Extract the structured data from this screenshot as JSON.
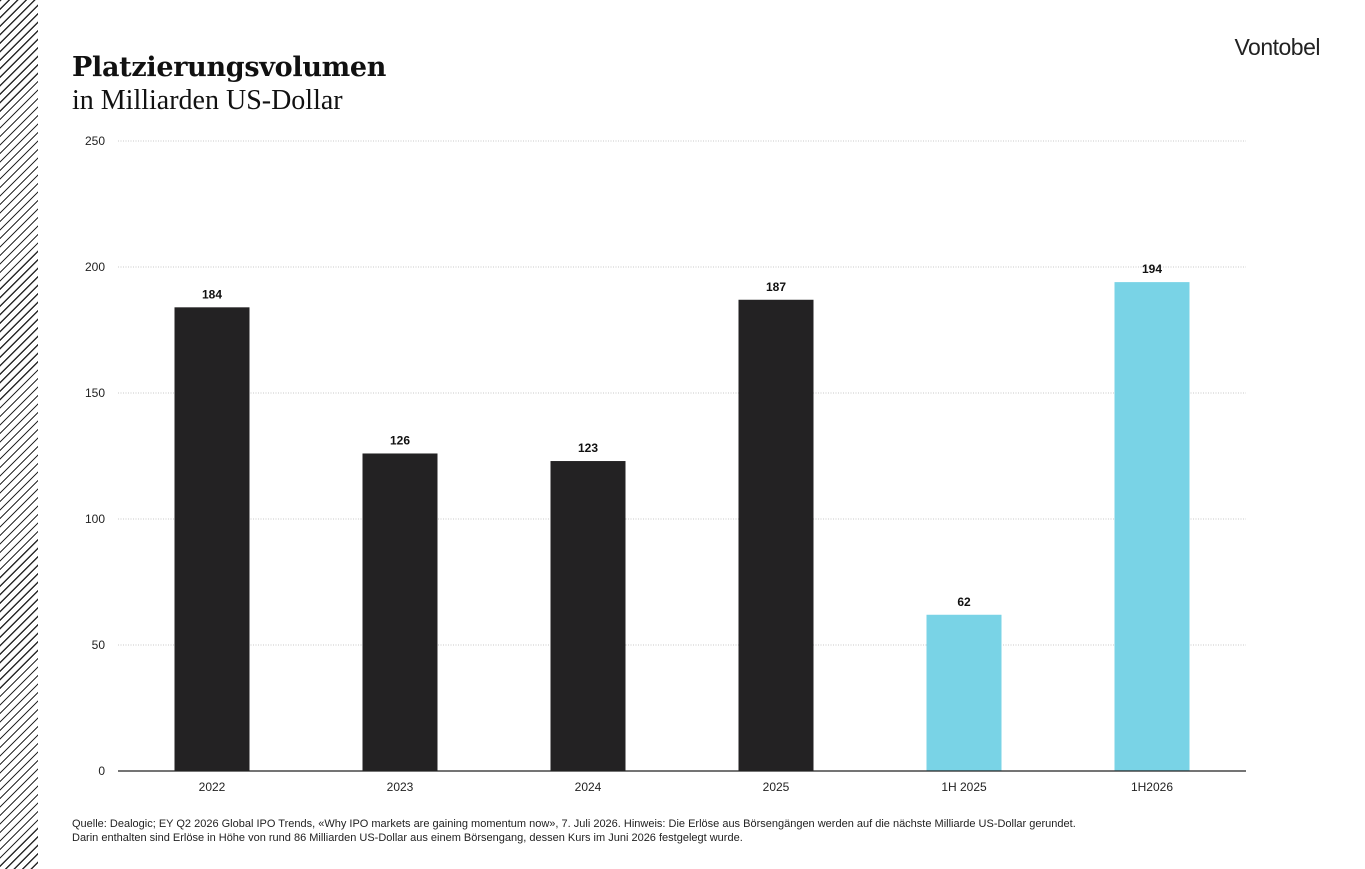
{
  "header": {
    "title": "Platzierungsvolumen",
    "subtitle": "in Milliarden US-Dollar",
    "brand": "Vontobel"
  },
  "footnote": {
    "line1": "Quelle: Dealogic; EY Q2 2026 Global IPO Trends, «Why IPO markets are gaining momentum now», 7. Juli 2026. Hinweis: Die Erlöse aus Börsengängen werden auf die nächste Milliarde US-Dollar gerundet.",
    "line2": "Darin enthalten sind Erlöse in Höhe von rund 86 Milliarden US-Dollar aus einem Börsengang, dessen Kurs im Juni 2026 festgelegt wurde."
  },
  "colors": {
    "annual": "#232223",
    "half_year": "#79d3e6"
  },
  "chart_data": {
    "type": "bar",
    "categories": [
      "2022",
      "2023",
      "2024",
      "2025",
      "1H 2025",
      "1H2026"
    ],
    "values": [
      184,
      126,
      123,
      187,
      62,
      194
    ],
    "bar_colors": [
      "#232223",
      "#232223",
      "#232223",
      "#232223",
      "#79d3e6",
      "#79d3e6"
    ],
    "data_labels": [
      "184",
      "126",
      "123",
      "187",
      "62",
      "194"
    ],
    "ylim": [
      0,
      250
    ],
    "yticks": [
      0,
      50,
      100,
      150,
      200,
      250
    ],
    "grid": true,
    "title": "Platzierungsvolumen",
    "ylabel": "in Milliarden US-Dollar",
    "xlabel": ""
  }
}
